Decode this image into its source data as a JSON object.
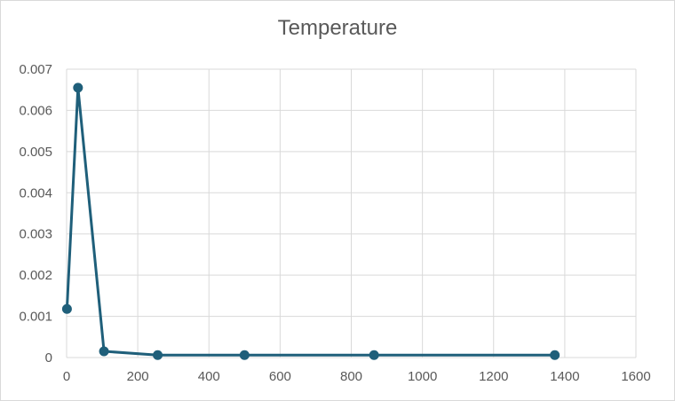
{
  "chart_data": {
    "type": "scatter",
    "title": "Temperature",
    "xlabel": "",
    "ylabel": "",
    "xlim": [
      0,
      1600
    ],
    "ylim": [
      0,
      0.007
    ],
    "x_ticks": [
      "0",
      "200",
      "400",
      "600",
      "800",
      "1000",
      "1200",
      "1400",
      "1600"
    ],
    "y_ticks": [
      "0",
      "0.001",
      "0.002",
      "0.003",
      "0.004",
      "0.005",
      "0.006",
      "0.007"
    ],
    "grid": true,
    "legend": "none",
    "series": [
      {
        "color": "#1f5f7a",
        "marker": "circle",
        "line": "straight",
        "points": [
          {
            "x": 1,
            "y": 0.00118
          },
          {
            "x": 32,
            "y": 0.00655
          },
          {
            "x": 105,
            "y": 0.00015
          },
          {
            "x": 256,
            "y": 6e-05
          },
          {
            "x": 500,
            "y": 6e-05
          },
          {
            "x": 864,
            "y": 6e-05
          },
          {
            "x": 1372,
            "y": 6e-05
          }
        ]
      }
    ]
  },
  "colors": {
    "series": "#1f5f7a",
    "grid": "#d9d9d9",
    "text": "#595959",
    "border": "#d9d9d9"
  }
}
